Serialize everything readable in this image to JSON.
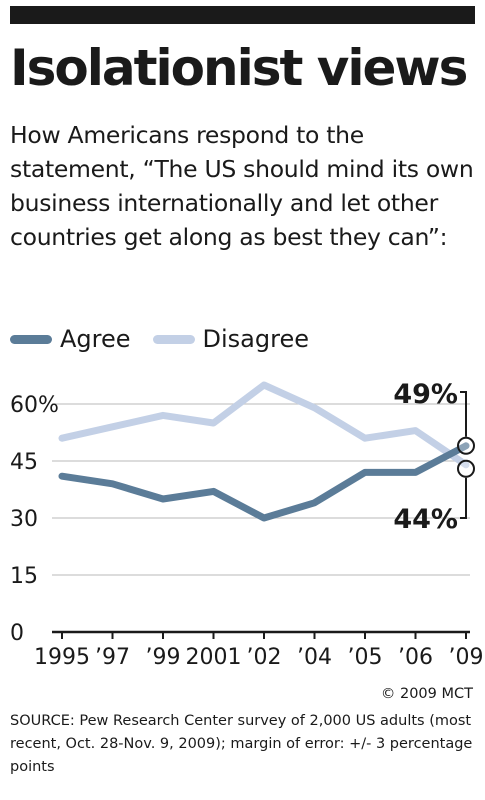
{
  "header": {
    "title": "Isolationist views",
    "subtitle": "How Americans respond to the statement, “The US should mind its own business internationally and let other countries get along as best they can”:"
  },
  "colors": {
    "agree": "#5b7c98",
    "disagree": "#c3d0e6",
    "text": "#1a1a1a",
    "grid": "#c8c8c8"
  },
  "chart_data": {
    "type": "line",
    "categories": [
      "1995",
      "’97",
      "’99",
      "2001",
      "’02",
      "’04",
      "’05",
      "’06",
      "’09"
    ],
    "series": [
      {
        "name": "Agree",
        "values": [
          41,
          39,
          35,
          37,
          30,
          34,
          42,
          42,
          49
        ]
      },
      {
        "name": "Disagree",
        "values": [
          51,
          54,
          57,
          55,
          65,
          59,
          51,
          53,
          44
        ]
      }
    ],
    "yticks": [
      "0",
      "15",
      "30",
      "45",
      "60%"
    ],
    "ylim": [
      0,
      65
    ],
    "grid": true,
    "legend_position": "top-left",
    "annotations": [
      {
        "label": "49%",
        "series": "Agree",
        "category": "’09"
      },
      {
        "label": "44%",
        "series": "Disagree",
        "category": "’09"
      }
    ]
  },
  "footer": {
    "credit": "© 2009 MCT",
    "source": "SOURCE: Pew Research Center survey of 2,000 US adults (most recent, Oct. 28-Nov. 9, 2009); margin of error: +/- 3 percentage points"
  }
}
